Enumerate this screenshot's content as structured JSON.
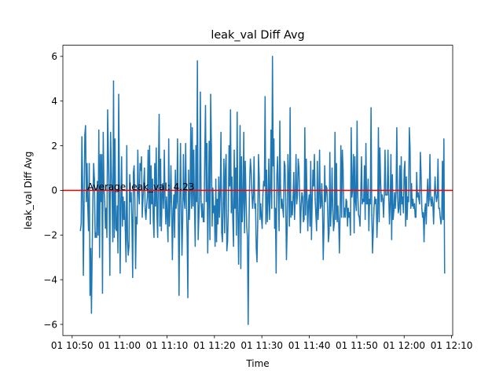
{
  "chart_data": {
    "type": "line",
    "title": "leak_val Diff Avg",
    "xlabel": "Time",
    "ylabel": "leak_val Diff Avg",
    "xlim": [
      "01 10:48:03",
      "01 12:10:14"
    ],
    "ylim": [
      -6.5,
      6.5
    ],
    "x_ticks": [
      "01 10:50",
      "01 11:00",
      "01 11:10",
      "01 11:20",
      "01 11:30",
      "01 11:40",
      "01 11:50",
      "01 12:00",
      "01 12:10"
    ],
    "y_ticks": [
      "−6",
      "−4",
      "−2",
      "0",
      "2",
      "4",
      "6"
    ],
    "y_tick_values": [
      -6,
      -4,
      -2,
      0,
      2,
      4,
      6
    ],
    "grid": false,
    "series": [
      {
        "color": "#1f77b4",
        "x_start": "01 10:51:45",
        "x_end": "01 12:08:32",
        "values": [
          -1.8,
          -1.5,
          2.4,
          0.2,
          -3.8,
          -0.5,
          2.5,
          2.9,
          -0.5,
          1.2,
          -0.7,
          -1.8,
          1.2,
          -4.7,
          -2.6,
          -5.5,
          -2.7,
          -0.3,
          1.2,
          0.5,
          -2.1,
          -1.9,
          -2.1,
          0.4,
          -2.0,
          2.7,
          -3.0,
          1.6,
          -0.5,
          1.6,
          -4.6,
          2.6,
          0.1,
          -0.5,
          -1.7,
          -0.8,
          -2.1,
          3.6,
          1.6,
          -0.3,
          -3.8,
          2.6,
          1.0,
          -0.3,
          -2.3,
          4.9,
          -2.1,
          2.3,
          -1.7,
          -1.8,
          -0.7,
          -2.8,
          4.3,
          0.3,
          -3.7,
          -0.5,
          1.5,
          -1.6,
          -0.3,
          -1.3,
          -0.5,
          -1.8,
          -3.2,
          2.0,
          -2.2,
          -2.9,
          -2.5,
          0.7,
          -0.5,
          -0.1,
          -1.4,
          -3.9,
          0.8,
          1.1,
          -0.4,
          -3.5,
          -1.2,
          -1.5,
          1.8,
          -0.1,
          -0.6,
          1.2,
          0.9,
          1.5,
          -1.2,
          -0.4,
          0.3,
          1.0,
          -0.9,
          -1.3,
          -0.7,
          -0.3,
          1.8,
          -0.8,
          2.0,
          -1.5,
          1.1,
          -0.6,
          0.5,
          -1.3,
          -2.1,
          1.2,
          -0.7,
          1.9,
          -1.1,
          -2.1,
          0.9,
          3.4,
          -1.6,
          1.4,
          -1.8,
          -0.2,
          0.3,
          -0.8,
          1.8,
          -0.3,
          -1.5,
          -0.3,
          -1.2,
          -2.3,
          2.3,
          -1.6,
          -0.5,
          1.1,
          -0.8,
          -3.1,
          -0.9,
          -0.2,
          -2.1,
          0.9,
          -0.8,
          -0.5,
          2.3,
          -1.1,
          -4.7,
          -0.6,
          2.1,
          -0.7,
          -2.9,
          -1.3,
          1.6,
          -0.4,
          -0.8,
          2.1,
          -0.5,
          -1.9,
          -4.8,
          0.9,
          -1.3,
          -0.2,
          3.0,
          -0.8,
          2.8,
          -0.7,
          1.8,
          -0.6,
          -2.5,
          2.0,
          -0.5,
          5.8,
          -2.2,
          -1.2,
          -0.2,
          4.4,
          -0.5,
          -1.2,
          -0.6,
          -1.4,
          -1.4,
          1.7,
          3.8,
          -0.5,
          2.1,
          -2.8,
          -0.5,
          2.2,
          -2.2,
          4.3,
          2.0,
          -1.6,
          0.1,
          -1.0,
          -0.7,
          -2.5,
          0.5,
          -2.3,
          -0.4,
          -1.5,
          0.6,
          -1.2,
          -0.2,
          2.6,
          -1.9,
          -2.3,
          -0.6,
          1.4,
          -1.9,
          0.9,
          1.6,
          -2.7,
          -2.3,
          -0.9,
          2.0,
          0.2,
          3.6,
          -1.0,
          0.6,
          -1.2,
          -2.5,
          1.8,
          -0.8,
          1.0,
          -2.0,
          3.5,
          -1.0,
          -3.3,
          -0.4,
          2.9,
          -3.5,
          1.5,
          -1.4,
          -0.5,
          2.6,
          -1.9,
          1.3,
          -0.2,
          -1.6,
          -2.1,
          -6.0,
          -1.8,
          0.4,
          1.4,
          0.9,
          -0.1,
          -0.8,
          -0.3,
          1.5,
          -0.8,
          -0.6,
          -2.6,
          -3.2,
          -1.4,
          1.6,
          0.6,
          -1.3,
          -0.6,
          -1.2,
          -1.7,
          -0.2,
          0.4,
          0.2,
          4.2,
          -1.5,
          0.9,
          -1.4,
          -0.5,
          1.4,
          -1.3,
          -0.1,
          2.7,
          -0.8,
          6.0,
          1.1,
          2.3,
          -1.7,
          -0.8,
          -3.7,
          0.7,
          1.5,
          -0.2,
          -1.8,
          3.1,
          0.1,
          -0.8,
          -0.4,
          -0.8,
          -1.2,
          1.3,
          1.1,
          -0.4,
          -3.1,
          -1.7,
          1.6,
          0.6,
          -1.6,
          3.7,
          -1.2,
          -0.5,
          -1.1,
          -0.3,
          0.8,
          -1.3,
          -0.3,
          1.6,
          -0.6,
          -0.2,
          1.4,
          1.0,
          -0.3,
          -1.9,
          -0.7,
          -0.1,
          -0.3,
          -1.4,
          -1.3,
          2.8,
          -1.1,
          1.4,
          -0.4,
          -1.8,
          -0.5,
          -0.2,
          -1.6,
          1.3,
          -2.2,
          -0.5,
          0.9,
          0.2,
          1.6,
          -0.4,
          -1.1,
          -1.8,
          1.3,
          -1.3,
          -0.5,
          1.8,
          -0.8,
          -0.7,
          0.3,
          -0.7,
          -3.1,
          -1.6,
          1.1,
          -0.5,
          0.2,
          0.1,
          -0.9,
          -2.3,
          -1.9,
          1.7,
          -1.6,
          -0.7,
          1.0,
          -0.9,
          -1.8,
          -1.5,
          2.6,
          -1.3,
          1.2,
          -1.4,
          -0.7,
          -1.4,
          -2.8,
          -0.9,
          2.0,
          -1.2,
          1.8,
          0.9,
          -1.2,
          -0.8,
          -1.2,
          -0.4,
          -0.5,
          -1.6,
          -0.8,
          -1.2,
          -1.0,
          -2.0,
          2.8,
          -0.3,
          0.1,
          1.6,
          -1.9,
          1.5,
          -0.5,
          -0.9,
          3.1,
          -0.2,
          -1.1,
          -1.2,
          -1.6,
          -0.2,
          1.5,
          -0.6,
          -0.4,
          -0.5,
          1.1,
          -1.3,
          2.1,
          -0.6,
          -0.6,
          0.5,
          -1.8,
          -0.4,
          -0.6,
          3.7,
          -1.1,
          -2.8,
          -1.8,
          -0.8,
          -0.3,
          -0.6,
          -0.4,
          -2.1,
          -1.0,
          2.8,
          -1.4,
          1.9,
          0.4,
          -0.5,
          -0.2,
          -0.4,
          -1.2,
          -0.2,
          1.8,
          -0.2,
          -0.2,
          -0.2,
          1.8,
          -0.2,
          -1.5,
          -0.6,
          1.6,
          -2.2,
          0.7,
          -1.3,
          -0.9,
          -0.1,
          -0.8,
          -0.1,
          2.8,
          -0.3,
          -1.0,
          -0.8,
          1.1,
          -1.1,
          1.5,
          -0.6,
          -0.3,
          -1.0,
          0.9,
          1.3,
          -1.6,
          0.6,
          -1.3,
          -0.3,
          -0.5,
          2.8,
          1.9,
          -0.8,
          0.3,
          -0.7,
          -0.4,
          -0.8,
          -0.6,
          -1.2,
          -1.2,
          0.8,
          -0.3,
          -0.1,
          -0.4,
          -0.6,
          1.7,
          0.7,
          -0.8,
          -1.2,
          -1.0,
          -2.3,
          -0.9,
          -0.6,
          -1.5,
          -0.3,
          0.5,
          -0.7,
          -0.4,
          1.6,
          -0.4,
          -0.7,
          -0.3,
          -0.6,
          -1.5,
          -0.3,
          0.6,
          -0.2,
          -0.5,
          -0.3,
          1.4,
          -0.8,
          -0.8,
          -1.2,
          -1.5,
          -1.2,
          1.3,
          -1.3,
          2.3,
          -3.7
        ]
      }
    ],
    "hline": {
      "value": 0.0,
      "color": "#ff0000"
    },
    "annotation": {
      "text": "Average leak_val: 4.23",
      "x": "01 10:53:10",
      "y": 0.0
    }
  }
}
